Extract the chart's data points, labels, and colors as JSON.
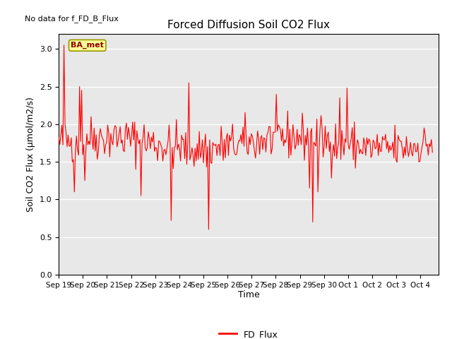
{
  "title": "Forced Diffusion Soil CO2 Flux",
  "xlabel": "Time",
  "ylabel": "Soil CO2 Flux (μmol/m2/s)",
  "no_data_label": "No data for f_FD_B_Flux",
  "annotation_label": "BA_met",
  "legend_label": "FD_Flux",
  "line_color": "#FF0000",
  "annotation_bg": "#FFFF99",
  "annotation_border": "#999900",
  "ylim": [
    0.0,
    3.2
  ],
  "yticks": [
    0.0,
    0.5,
    1.0,
    1.5,
    2.0,
    2.5,
    3.0
  ],
  "background_color": "#E8E8E8",
  "fig_background": "#FFFFFF",
  "seed": 42,
  "n_points": 360
}
